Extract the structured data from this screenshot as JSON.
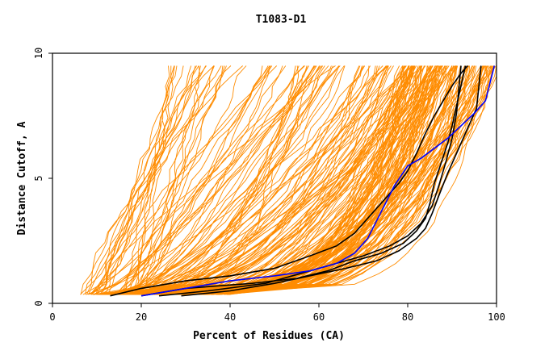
{
  "chart_data": {
    "type": "line",
    "title": "T1083-D1",
    "xlabel": "Percent of Residues (CA)",
    "ylabel": "Distance Cutoff, A",
    "xlim": [
      0,
      100
    ],
    "ylim": [
      0,
      10
    ],
    "xticks": [
      "0",
      "20",
      "40",
      "60",
      "80",
      "100"
    ],
    "xtick_values": [
      0,
      20,
      40,
      60,
      80,
      100
    ],
    "yticks": [
      "0",
      "5",
      "10"
    ],
    "ytick_values": [
      0,
      5,
      10
    ],
    "grid": false,
    "legend": "none",
    "colors": {
      "background_traces": "#ff8c00",
      "highlight_black": "#000000",
      "highlight_blue": "#0000ff",
      "axes": "#000000"
    },
    "background_series_count": 220,
    "highlight_series": [
      {
        "color": "#000000",
        "x": [
          13,
          20,
          30,
          40,
          50,
          58,
          64,
          68,
          72,
          75,
          78,
          80,
          82,
          84,
          86,
          88,
          90,
          92,
          93.5
        ],
        "y": [
          0.3,
          0.6,
          0.9,
          1.1,
          1.4,
          1.9,
          2.3,
          2.8,
          3.6,
          4.2,
          4.8,
          5.3,
          6.0,
          6.8,
          7.5,
          8.1,
          8.7,
          9.2,
          9.5
        ]
      },
      {
        "color": "#000000",
        "x": [
          24,
          35,
          48,
          56,
          64,
          70,
          76,
          80,
          83,
          85.5,
          87,
          88.5,
          90,
          91,
          92
        ],
        "y": [
          0.3,
          0.5,
          0.8,
          1.2,
          1.6,
          1.9,
          2.3,
          2.7,
          3.2,
          3.9,
          4.7,
          5.6,
          6.6,
          7.6,
          9.5
        ]
      },
      {
        "color": "#000000",
        "x": [
          29,
          40,
          50,
          58,
          66,
          73,
          78,
          82,
          84,
          85.5,
          87,
          89,
          91,
          93,
          95.5,
          96.5
        ],
        "y": [
          0.3,
          0.5,
          0.8,
          1.1,
          1.4,
          1.7,
          2.1,
          2.6,
          3.0,
          3.6,
          4.3,
          5.2,
          6.0,
          6.8,
          7.8,
          9.5
        ]
      },
      {
        "color": "#000000",
        "x": [
          20,
          30,
          45,
          55,
          62,
          68,
          74,
          79,
          82,
          84,
          85,
          86,
          87.5,
          89,
          90,
          91,
          92,
          93
        ],
        "y": [
          0.3,
          0.6,
          0.8,
          1.0,
          1.3,
          1.7,
          2.0,
          2.4,
          2.9,
          3.4,
          4.0,
          4.8,
          5.6,
          6.4,
          7.1,
          7.9,
          8.7,
          9.5
        ]
      },
      {
        "color": "#0000ff",
        "x": [
          20,
          30,
          40,
          50,
          58,
          64,
          68,
          71,
          73,
          75,
          77,
          80,
          83,
          86,
          89,
          92,
          95,
          97.5,
          98.5,
          99.5
        ],
        "y": [
          0.3,
          0.6,
          0.9,
          1.1,
          1.3,
          1.6,
          2.0,
          2.6,
          3.3,
          4.0,
          4.7,
          5.5,
          5.8,
          6.2,
          6.6,
          7.1,
          7.6,
          8.1,
          8.8,
          9.5
        ]
      }
    ]
  }
}
